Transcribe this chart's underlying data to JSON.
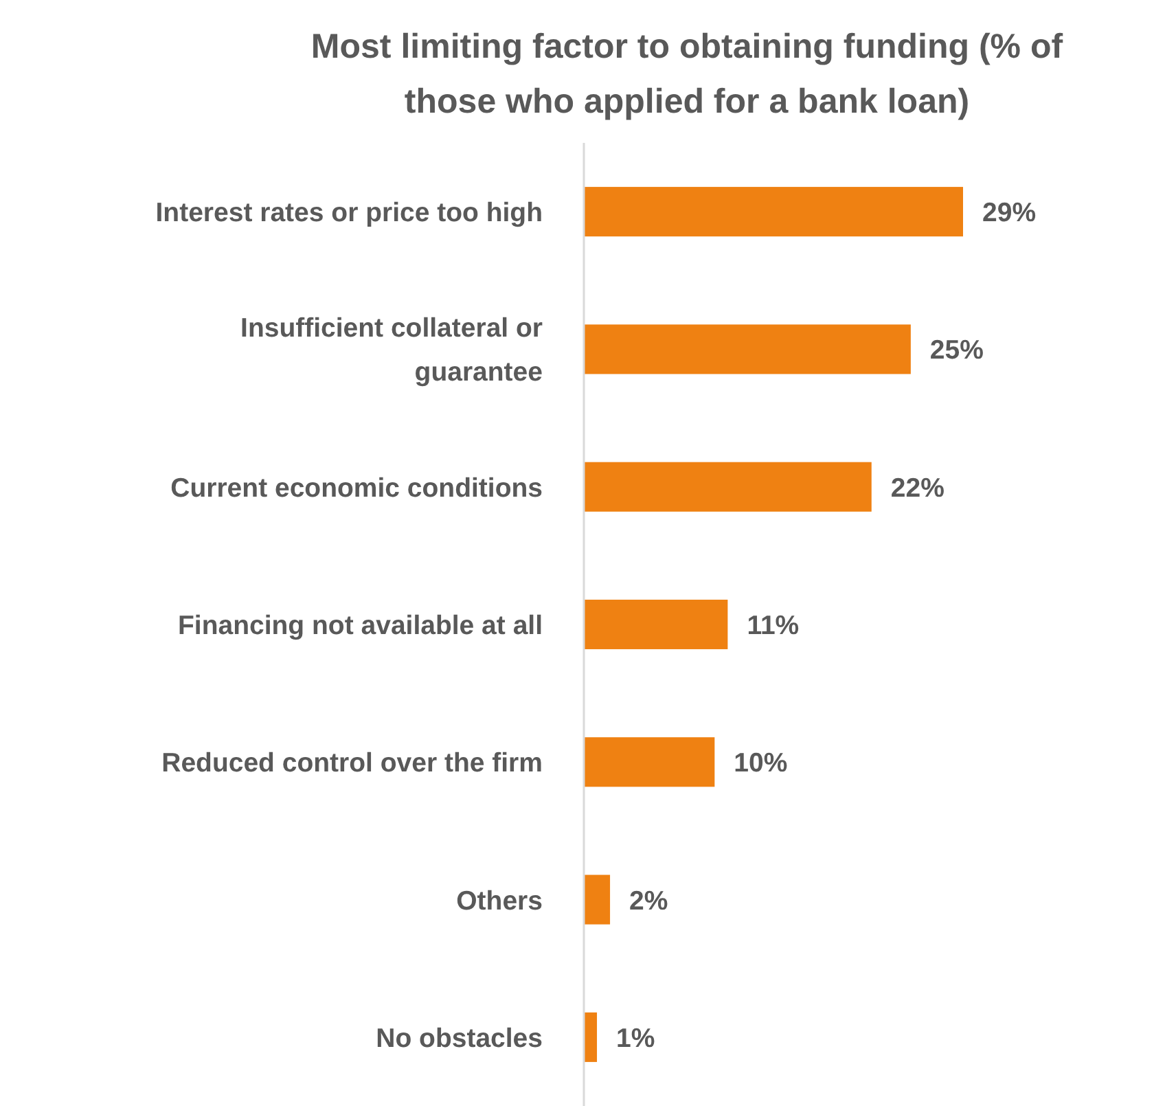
{
  "chart_data": {
    "type": "bar",
    "orientation": "horizontal",
    "title": "Most limiting factor to obtaining funding (% of those who applied for a bank loan)",
    "categories": [
      "Interest rates or price too high",
      "Insufficient collateral or guarantee",
      "Current economic conditions",
      "Financing not available at all",
      "Reduced control over the firm",
      "Others",
      "No obstacles"
    ],
    "values": [
      29,
      25,
      22,
      11,
      10,
      2,
      1
    ],
    "value_labels": [
      "29%",
      "25%",
      "22%",
      "11%",
      "10%",
      "2%",
      "1%"
    ],
    "color": "#ef8112"
  }
}
